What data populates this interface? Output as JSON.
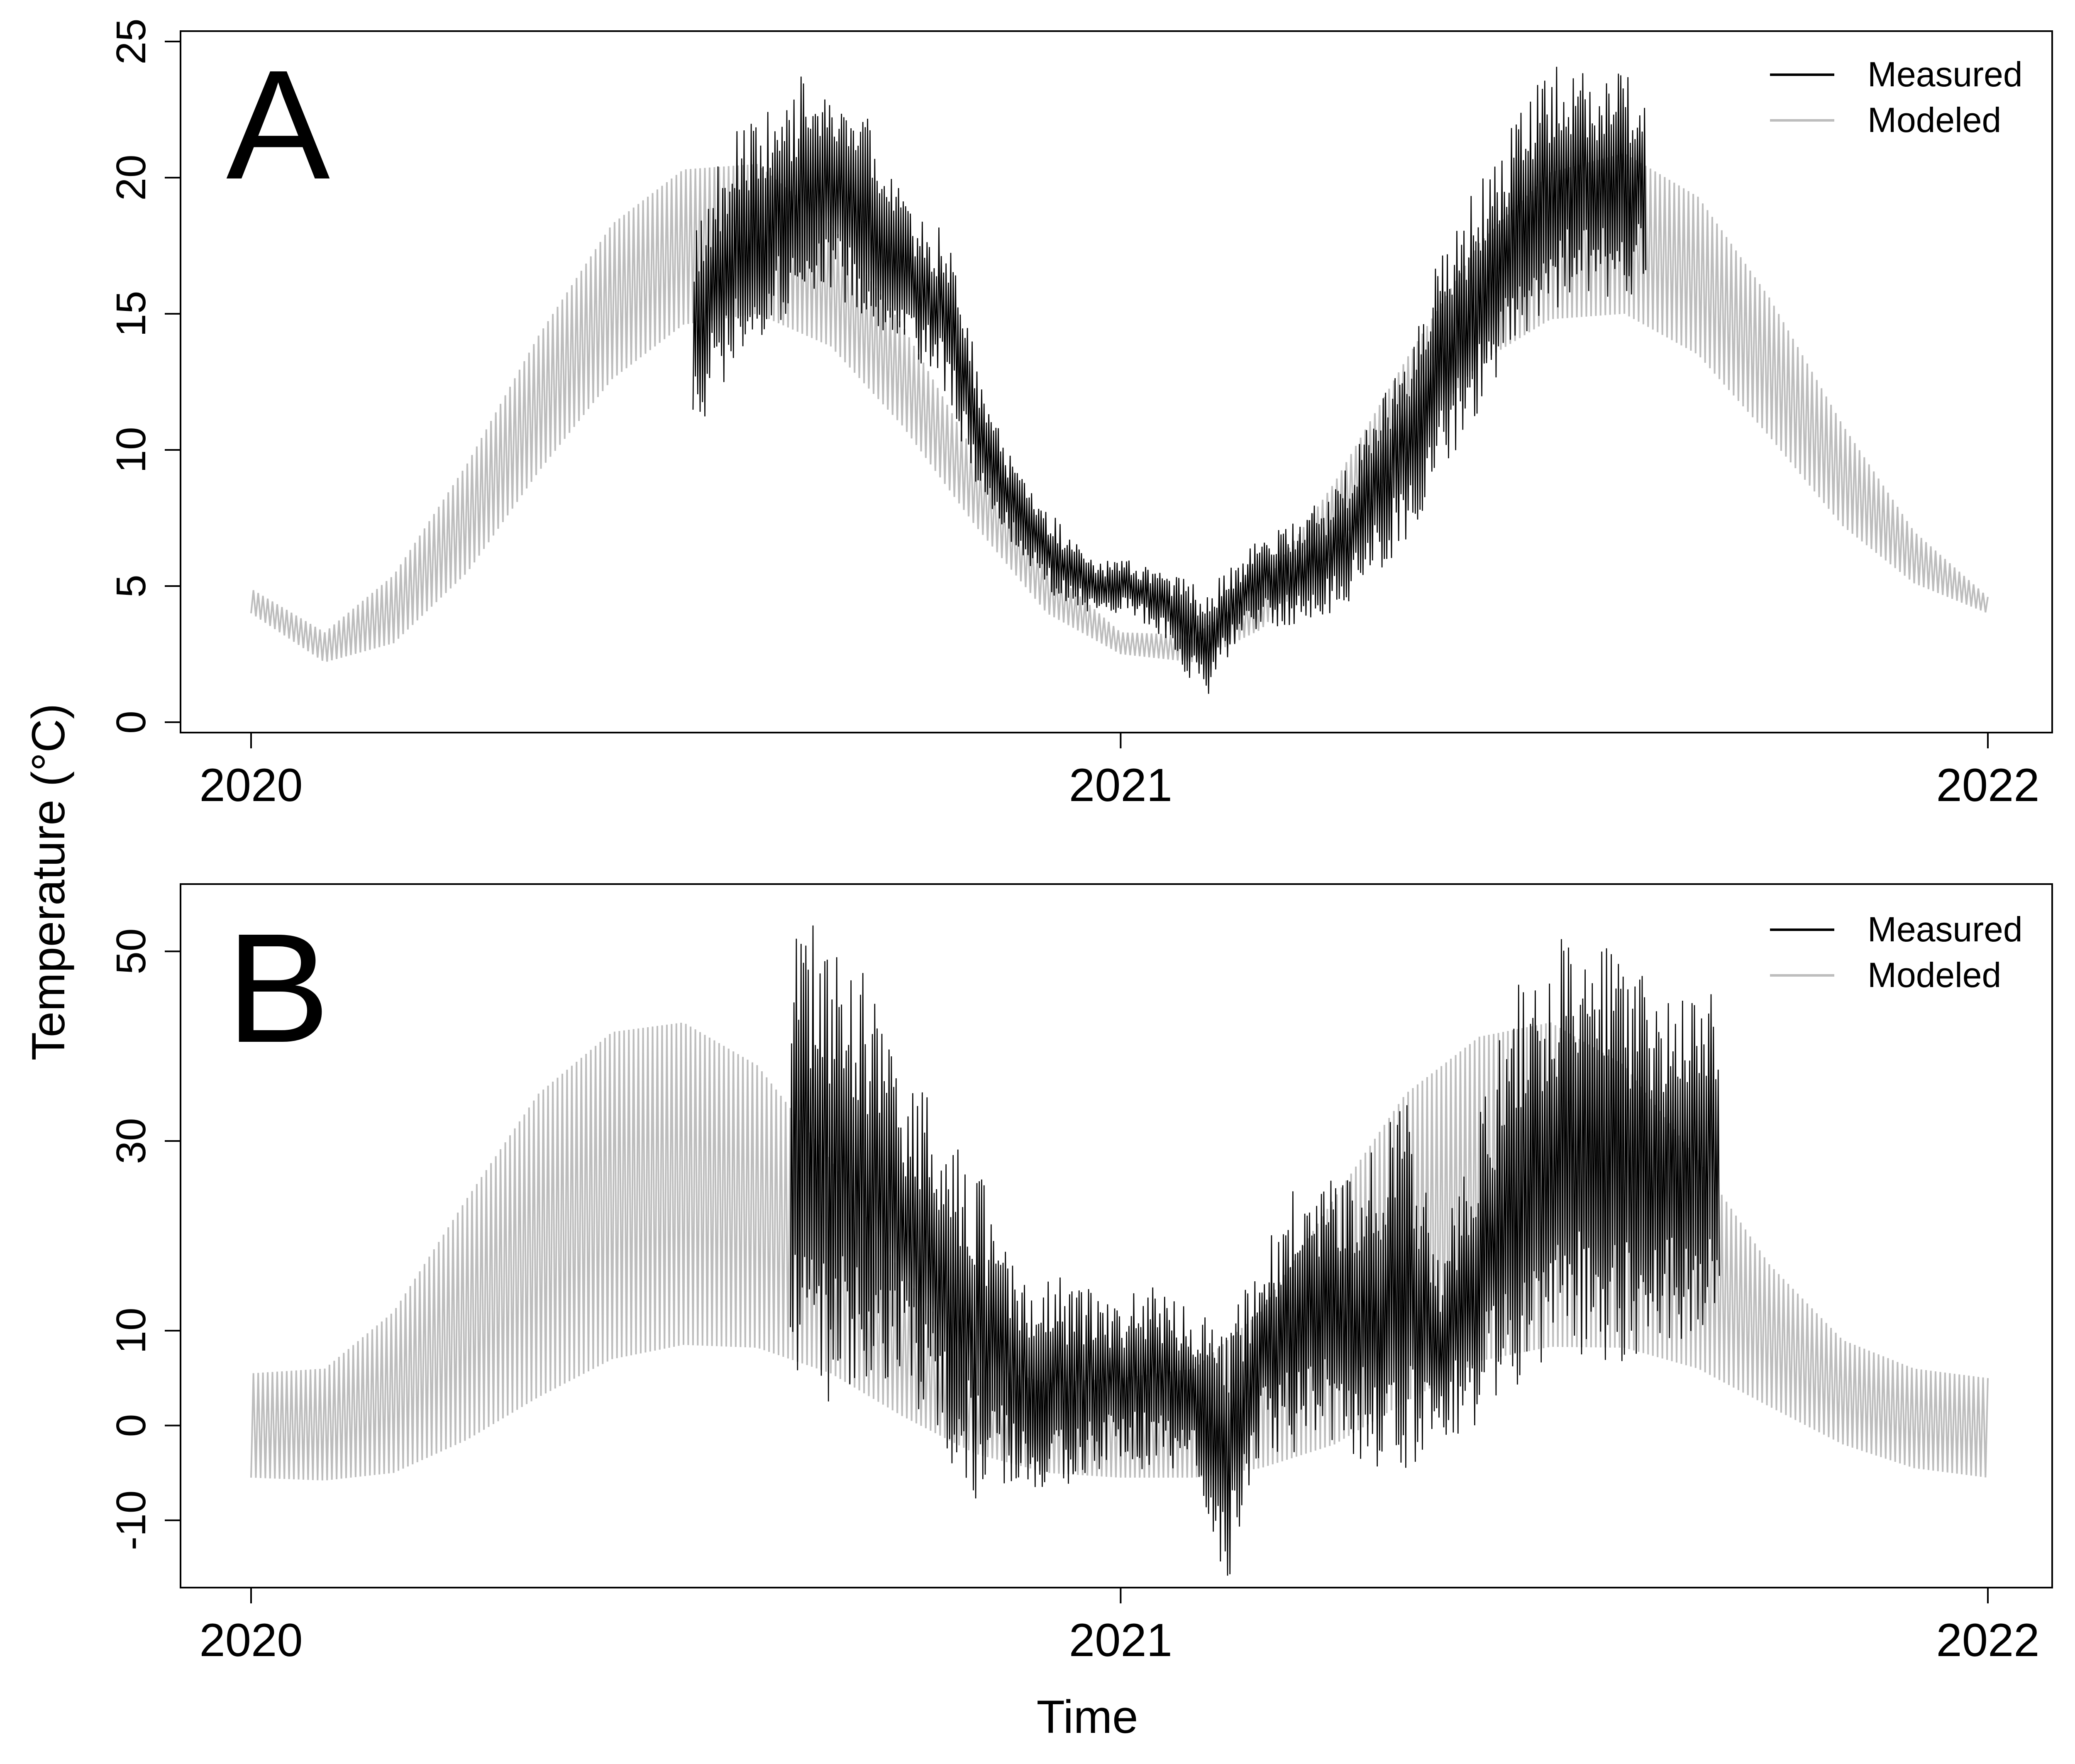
{
  "figure": {
    "ylabel": "Temperature (°C)",
    "xlabel": "Time"
  },
  "chart_data": [
    {
      "panel": "A",
      "type": "line",
      "title": "",
      "xlabel": "Time",
      "ylabel": "Temperature (°C)",
      "xlim": [
        "2020-01-01",
        "2022-01-01"
      ],
      "ylim": [
        0,
        25
      ],
      "x_ticks": [
        "2020",
        "2021",
        "2022"
      ],
      "x_tick_dates": [
        "2020-01-01",
        "2021-01-01",
        "2022-01-01"
      ],
      "y_ticks": [
        "0",
        "5",
        "10",
        "15",
        "20",
        "25"
      ],
      "y_tick_values": [
        0,
        5,
        10,
        15,
        20,
        25
      ],
      "grid": false,
      "legend_position": "top-right",
      "legend": [
        {
          "label": "Measured",
          "color": "#000000"
        },
        {
          "label": "Modeled",
          "color": "#bdbdbd"
        }
      ],
      "series": [
        {
          "name": "Modeled",
          "color": "#bdbdbd",
          "style": "band",
          "x": [
            "2020-01-01",
            "2020-02-01",
            "2020-03-01",
            "2020-04-01",
            "2020-05-01",
            "2020-06-01",
            "2020-07-01",
            "2020-08-01",
            "2020-09-01",
            "2020-10-01",
            "2020-11-01",
            "2020-12-01",
            "2021-01-01",
            "2021-02-01",
            "2021-03-01",
            "2021-04-01",
            "2021-05-01",
            "2021-06-01",
            "2021-07-01",
            "2021-08-01",
            "2021-09-01",
            "2021-10-01",
            "2021-11-01",
            "2021-12-01",
            "2022-01-01"
          ],
          "low": [
            4.0,
            2.2,
            2.9,
            5.5,
            9.2,
            12.6,
            14.6,
            15.0,
            13.8,
            10.9,
            7.2,
            4.0,
            2.5,
            2.2,
            3.4,
            6.3,
            10.0,
            13.2,
            14.8,
            15.0,
            13.5,
            10.5,
            7.2,
            5.1,
            4.0
          ],
          "high": [
            4.9,
            3.3,
            5.4,
            9.5,
            14.2,
            18.3,
            20.3,
            20.5,
            18.3,
            14.6,
            9.8,
            5.7,
            3.3,
            3.2,
            4.9,
            8.8,
            13.3,
            17.6,
            20.2,
            20.9,
            19.3,
            15.6,
            10.9,
            7.0,
            4.6
          ]
        },
        {
          "name": "Measured",
          "color": "#000000",
          "style": "line",
          "x": [
            "2020-07-05",
            "2020-07-20",
            "2020-08-05",
            "2020-08-20",
            "2020-09-05",
            "2020-09-20",
            "2020-10-05",
            "2020-10-20",
            "2020-11-05",
            "2020-11-20",
            "2020-12-05",
            "2020-12-20",
            "2021-01-05",
            "2021-01-20",
            "2021-02-05",
            "2021-02-20",
            "2021-03-01",
            "2021-03-15",
            "2021-04-01",
            "2021-04-15",
            "2021-05-01",
            "2021-05-15",
            "2021-06-01",
            "2021-06-15",
            "2021-07-01",
            "2021-07-15",
            "2021-08-01",
            "2021-08-10"
          ],
          "low": [
            10.5,
            12.5,
            14.0,
            15.0,
            15.5,
            14.5,
            13.5,
            12.0,
            7.5,
            6.0,
            4.5,
            4.0,
            4.0,
            3.0,
            0.7,
            3.0,
            3.5,
            3.5,
            4.0,
            5.0,
            6.5,
            9.0,
            11.0,
            13.5,
            15.0,
            15.5,
            15.5,
            16.0
          ],
          "high": [
            18.5,
            21.5,
            22.5,
            23.8,
            22.8,
            22.0,
            18.8,
            18.0,
            12.0,
            9.0,
            7.5,
            6.0,
            6.0,
            5.5,
            5.0,
            6.0,
            6.8,
            7.5,
            8.5,
            11.0,
            14.0,
            17.0,
            20.0,
            22.0,
            24.2,
            24.0,
            23.8,
            23.5
          ]
        }
      ]
    },
    {
      "panel": "B",
      "type": "line",
      "title": "",
      "xlabel": "Time",
      "ylabel": "Temperature (°C)",
      "xlim": [
        "2020-01-01",
        "2022-01-01"
      ],
      "ylim": [
        -16,
        56
      ],
      "x_ticks": [
        "2020",
        "2021",
        "2022"
      ],
      "x_tick_dates": [
        "2020-01-01",
        "2021-01-01",
        "2022-01-01"
      ],
      "y_ticks": [
        "-10",
        "0",
        "10",
        "30",
        "50"
      ],
      "y_tick_values": [
        -10,
        0,
        10,
        30,
        50
      ],
      "grid": false,
      "legend_position": "top-right",
      "legend": [
        {
          "label": "Measured",
          "color": "#000000"
        },
        {
          "label": "Modeled",
          "color": "#bdbdbd"
        }
      ],
      "series": [
        {
          "name": "Modeled",
          "color": "#bdbdbd",
          "style": "band",
          "x": [
            "2020-01-01",
            "2020-02-01",
            "2020-03-01",
            "2020-04-01",
            "2020-05-01",
            "2020-06-01",
            "2020-07-01",
            "2020-08-01",
            "2020-09-01",
            "2020-10-01",
            "2020-11-01",
            "2020-12-01",
            "2021-01-01",
            "2021-02-01",
            "2021-03-01",
            "2021-04-01",
            "2021-05-01",
            "2021-06-01",
            "2021-07-01",
            "2021-08-01",
            "2021-09-01",
            "2021-10-01",
            "2021-11-01",
            "2021-12-01",
            "2022-01-01"
          ],
          "low": [
            -5.5,
            -5.8,
            -5.0,
            -1.5,
            3.0,
            7.0,
            8.5,
            8.2,
            5.5,
            1.0,
            -3.0,
            -5.0,
            -5.5,
            -5.5,
            -4.5,
            -2.0,
            2.5,
            6.8,
            8.3,
            8.2,
            6.0,
            2.0,
            -2.0,
            -4.5,
            -5.5
          ],
          "high": [
            5.5,
            6.0,
            12.0,
            24.0,
            35.0,
            41.5,
            42.5,
            38.0,
            28.0,
            16.0,
            6.5,
            4.5,
            5.0,
            6.0,
            12.0,
            24.0,
            35.0,
            41.0,
            42.5,
            38.0,
            28.0,
            17.0,
            9.0,
            6.0,
            5.0
          ]
        },
        {
          "name": "Measured",
          "color": "#000000",
          "style": "line",
          "x": [
            "2020-08-15",
            "2020-09-01",
            "2020-09-15",
            "2020-10-01",
            "2020-10-15",
            "2020-11-01",
            "2020-11-15",
            "2020-12-01",
            "2020-12-15",
            "2021-01-01",
            "2021-01-15",
            "2021-02-01",
            "2021-02-15",
            "2021-03-01",
            "2021-03-15",
            "2021-04-01",
            "2021-04-15",
            "2021-05-01",
            "2021-05-15",
            "2021-06-15",
            "2021-07-01",
            "2021-07-15",
            "2021-08-01",
            "2021-08-15",
            "2021-09-01",
            "2021-09-10"
          ],
          "low": [
            5.0,
            2.0,
            3.0,
            5.0,
            -2.0,
            -8.0,
            -6.0,
            -8.0,
            -6.0,
            -4.0,
            -5.0,
            -5.0,
            -17.0,
            -3.0,
            -3.0,
            -2.0,
            -4.0,
            -6.0,
            -2.0,
            2.0,
            4.0,
            5.0,
            6.0,
            6.0,
            8.0,
            12.0
          ],
          "high": [
            54.0,
            52.0,
            48.0,
            37.0,
            34.0,
            28.0,
            18.0,
            16.0,
            15.0,
            14.0,
            15.0,
            12.0,
            11.0,
            18.0,
            25.0,
            27.0,
            29.0,
            35.0,
            18.0,
            46.0,
            50.0,
            55.5,
            48.0,
            49.0,
            47.0,
            45.0
          ]
        }
      ]
    }
  ]
}
